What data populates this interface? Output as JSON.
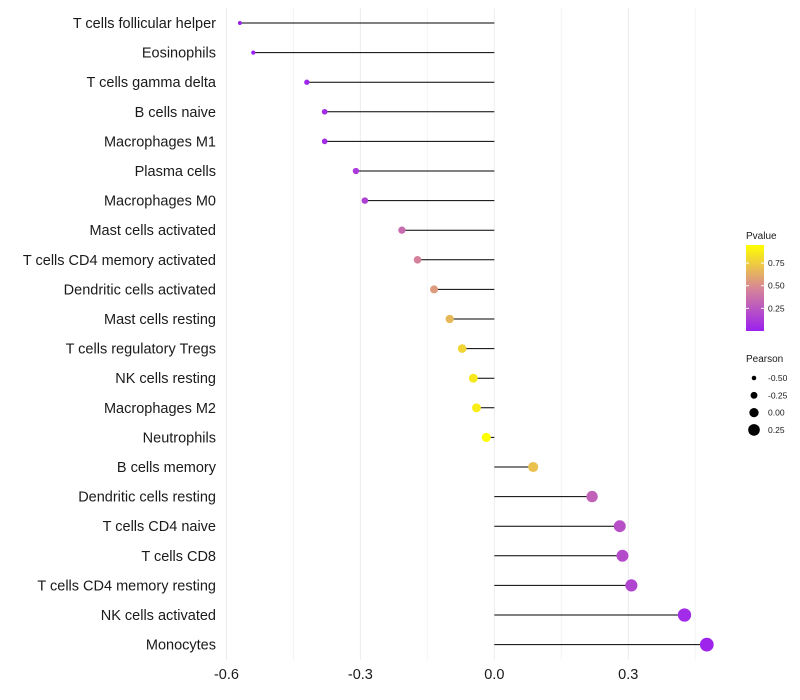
{
  "chart_data": {
    "type": "lollipop",
    "categories": [
      "T cells follicular helper",
      "Eosinophils",
      "T cells gamma delta",
      "B cells naive",
      "Macrophages M1",
      "Plasma cells",
      "Macrophages M0",
      "Mast cells activated",
      "T cells CD4 memory activated",
      "Dendritic cells activated",
      "Mast cells resting",
      "T cells regulatory  Tregs ",
      "NK cells resting",
      "Macrophages M2",
      "Neutrophils",
      "B cells memory",
      "Dendritic cells resting",
      "T cells CD4 naive",
      "T cells CD8",
      "T cells CD4 memory resting",
      "NK cells activated",
      "Monocytes"
    ],
    "pearson": [
      -0.57,
      -0.54,
      -0.42,
      -0.38,
      -0.38,
      -0.31,
      -0.29,
      -0.207,
      -0.172,
      -0.135,
      -0.1,
      -0.072,
      -0.047,
      -0.04,
      -0.018,
      0.087,
      0.219,
      0.281,
      0.287,
      0.307,
      0.426,
      0.476
    ],
    "pvalue": [
      0.0,
      0.0,
      0.03,
      0.06,
      0.06,
      0.12,
      0.15,
      0.35,
      0.45,
      0.55,
      0.67,
      0.78,
      0.86,
      0.88,
      0.96,
      0.7,
      0.3,
      0.22,
      0.2,
      0.17,
      0.05,
      0.02
    ],
    "xlim": [
      -0.61,
      0.51
    ],
    "x_ticks": [
      {
        "value": -0.6,
        "label": "-0.6"
      },
      {
        "value": -0.3,
        "label": "-0.3"
      },
      {
        "value": 0.0,
        "label": "0.0"
      },
      {
        "value": 0.3,
        "label": "0.3"
      }
    ],
    "minor_gridlines": [
      -0.45,
      -0.15,
      0.15,
      0.45
    ],
    "reference_x": 0.0,
    "xlabel": "",
    "ylabel": "",
    "legend": {
      "position": "right",
      "color": {
        "title": "Pvalue",
        "ticks": [
          {
            "value": 0.75,
            "label": "0.75"
          },
          {
            "value": 0.5,
            "label": "0.50"
          },
          {
            "value": 0.25,
            "label": "0.25"
          }
        ],
        "range": [
          0.0,
          0.95
        ],
        "low_color": "#9b20f0",
        "high_color": "#ffff00"
      },
      "size": {
        "title": "Pearson",
        "entries": [
          {
            "value": -0.5,
            "label": "-0.50"
          },
          {
            "value": -0.25,
            "label": "-0.25"
          },
          {
            "value": 0.0,
            "label": "0.00"
          },
          {
            "value": 0.25,
            "label": "0.25"
          }
        ]
      }
    }
  }
}
